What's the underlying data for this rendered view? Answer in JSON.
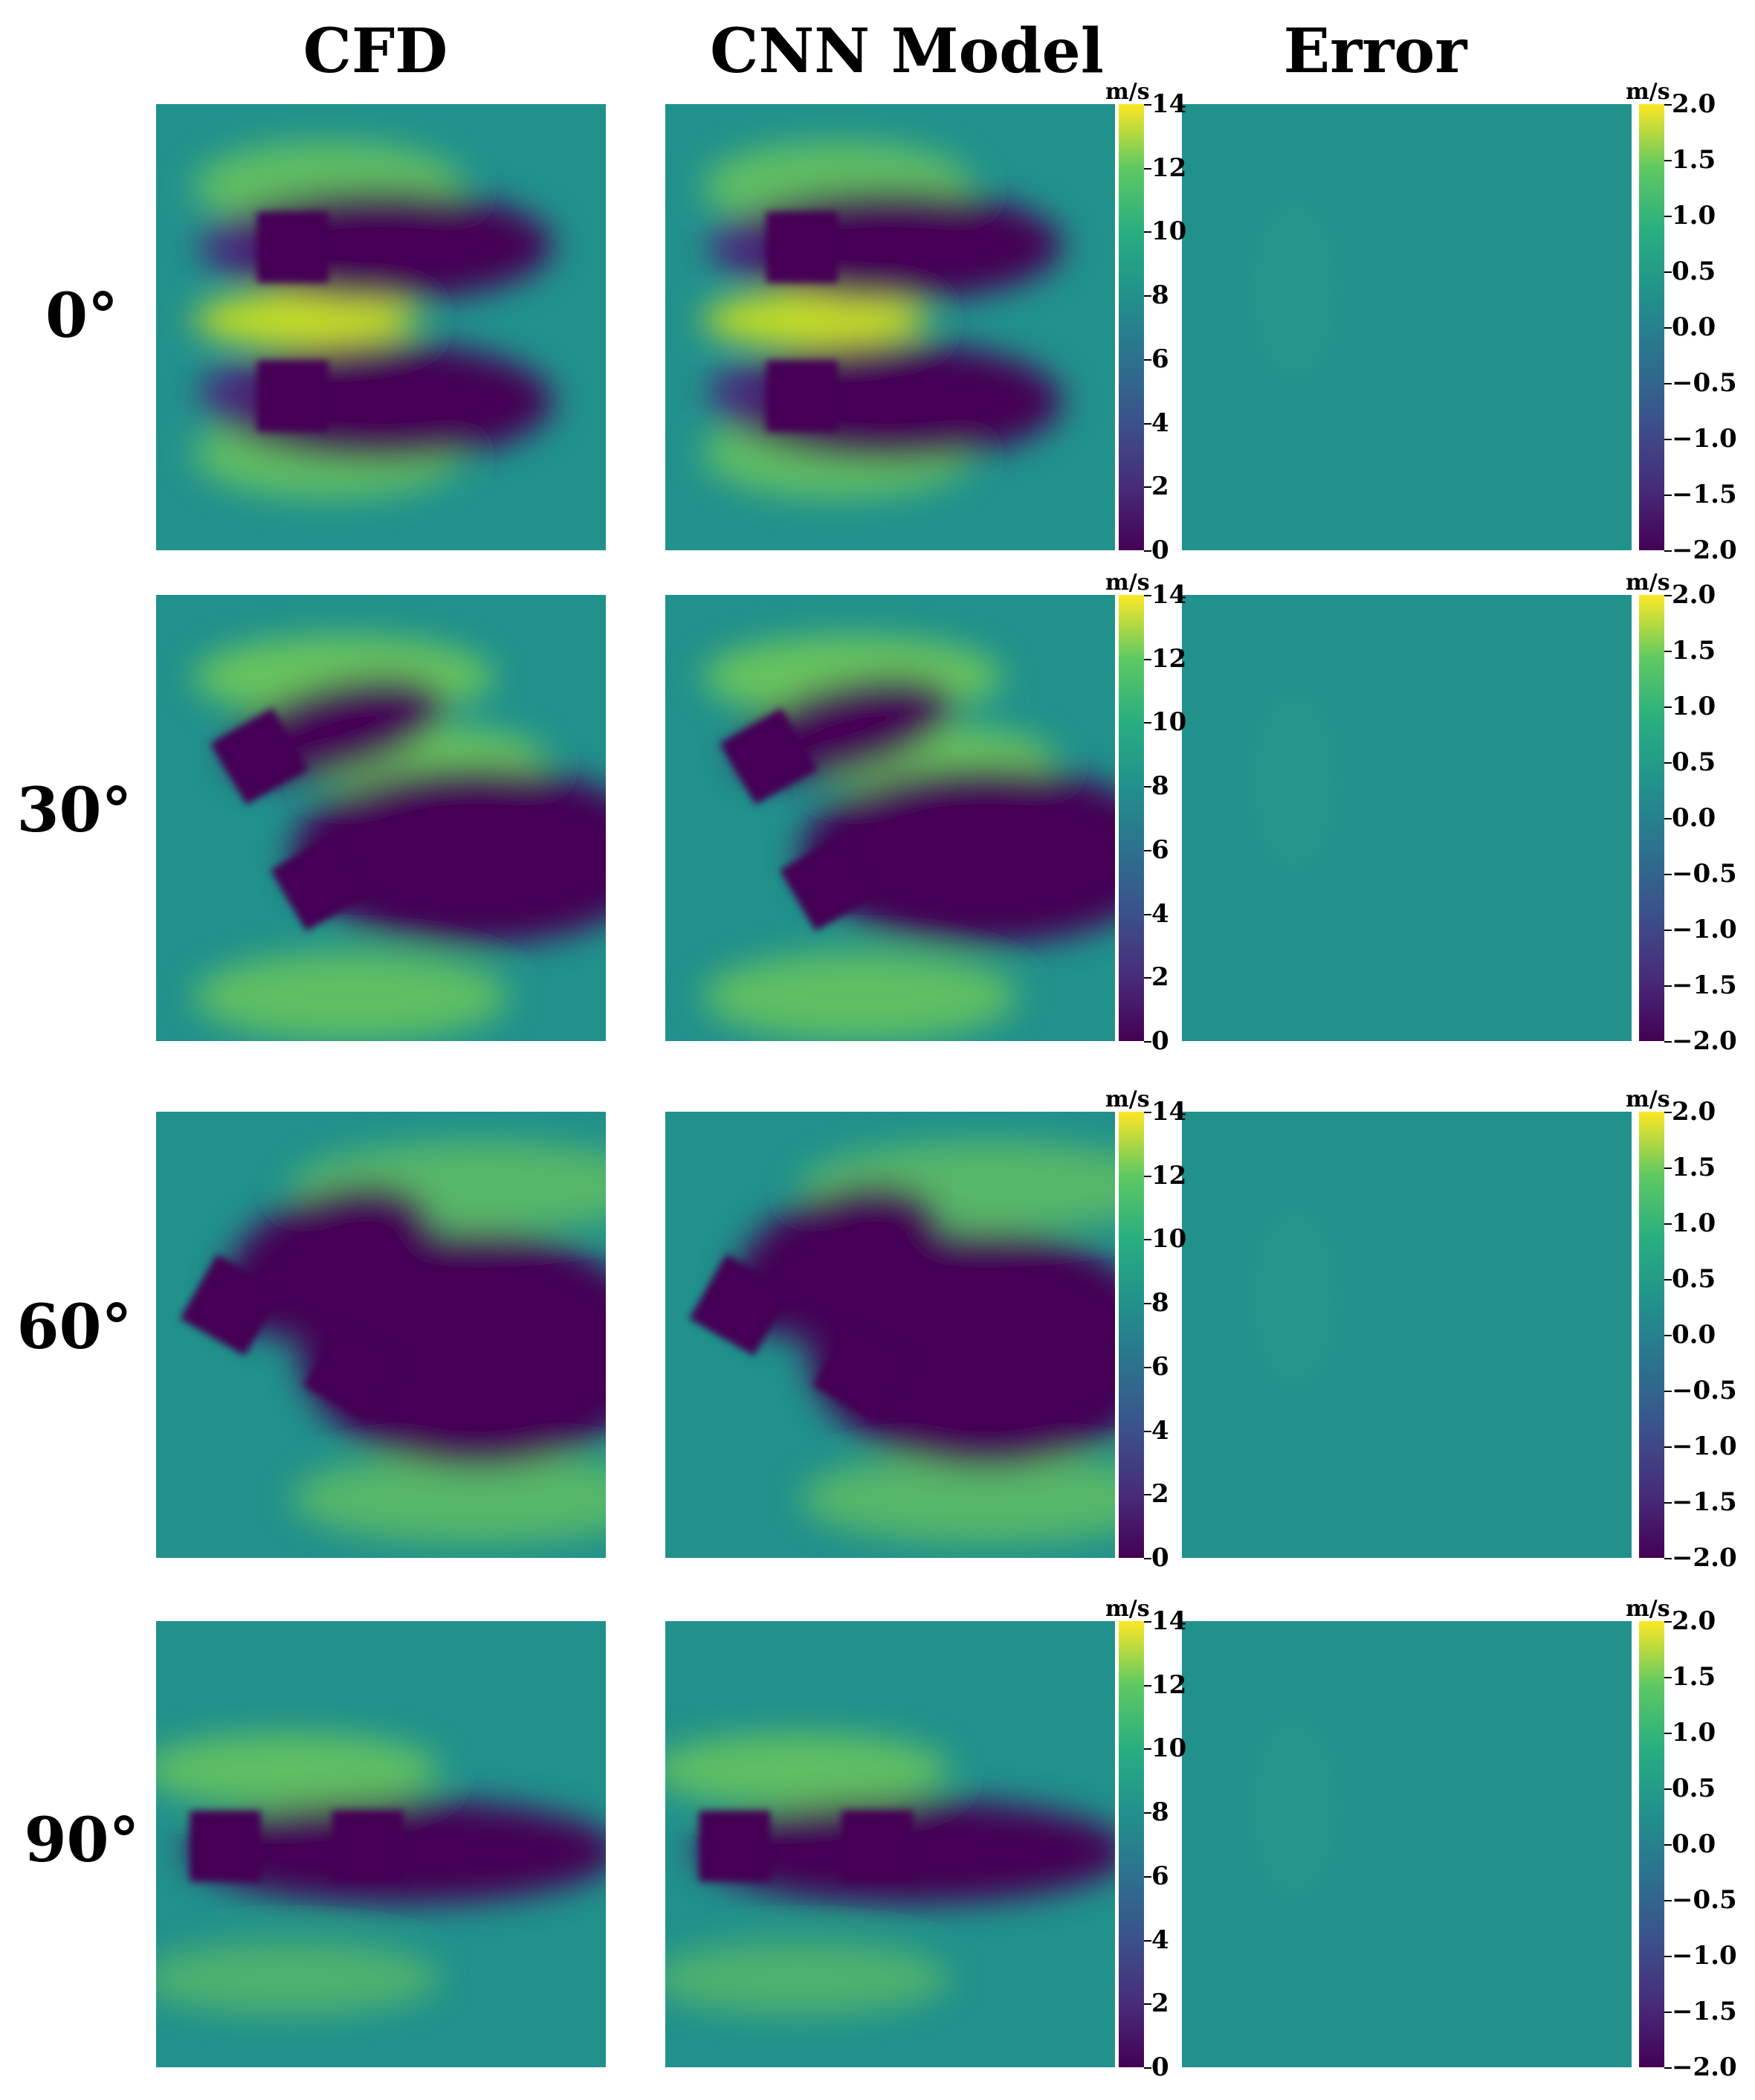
{
  "headers": {
    "cfd": "CFD",
    "cnn": "CNN Model",
    "error": "Error"
  },
  "rows": [
    {
      "label": "0°",
      "angle": 0
    },
    {
      "label": "30°",
      "angle": 30
    },
    {
      "label": "60°",
      "angle": 60
    },
    {
      "label": "90°",
      "angle": 90
    }
  ],
  "colorbars": {
    "velocity": {
      "unit": "m/s",
      "ticks": [
        "14",
        "12",
        "10",
        "8",
        "6",
        "4",
        "2",
        "0"
      ],
      "range": [
        0,
        14
      ]
    },
    "error": {
      "unit": "m/s",
      "ticks": [
        "2.0",
        "1.5",
        "1.0",
        "0.5",
        "0.0",
        "−0.5",
        "−1.0",
        "−1.5",
        "−2.0"
      ],
      "range": [
        -2.0,
        2.0
      ]
    }
  },
  "colormap": {
    "name": "viridis",
    "low": "#440154",
    "mid": "#21918c",
    "high": "#fde725"
  }
}
